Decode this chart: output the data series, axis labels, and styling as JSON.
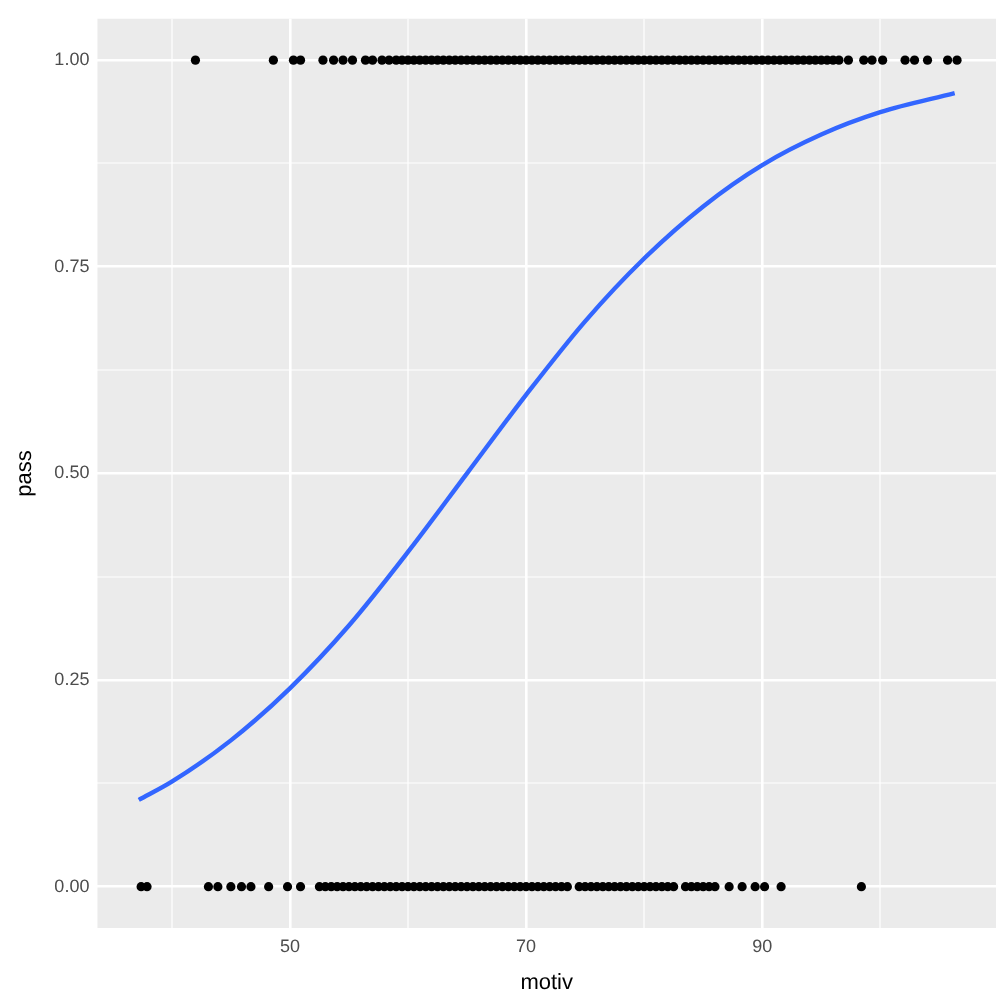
{
  "chart_data": {
    "type": "scatter",
    "xlabel": "motiv",
    "ylabel": "pass",
    "xlim": [
      33.7,
      109.8
    ],
    "ylim": [
      -0.05,
      1.05
    ],
    "xticks": [
      {
        "value": 40,
        "label": null
      },
      {
        "value": 50,
        "label": "50"
      },
      {
        "value": 60,
        "label": null
      },
      {
        "value": 70,
        "label": "70"
      },
      {
        "value": 80,
        "label": null
      },
      {
        "value": 90,
        "label": "90"
      },
      {
        "value": 100,
        "label": null
      }
    ],
    "yticks": [
      {
        "value": 0,
        "label": "0.00"
      },
      {
        "value": 0.125,
        "label": null
      },
      {
        "value": 0.25,
        "label": "0.25"
      },
      {
        "value": 0.375,
        "label": null
      },
      {
        "value": 0.5,
        "label": "0.50"
      },
      {
        "value": 0.625,
        "label": null
      },
      {
        "value": 0.75,
        "label": "0.75"
      },
      {
        "value": 0.875,
        "label": null
      },
      {
        "value": 1,
        "label": "1.00"
      }
    ],
    "grid": true,
    "legend": false,
    "marker": "circle",
    "series": [
      {
        "type": "scatter",
        "color": "#000000",
        "x": [
          42,
          48.6,
          50.3,
          50.9,
          52.8,
          53.7,
          54.5,
          55.3,
          56.4,
          57,
          57.8,
          58.4,
          59,
          59.5,
          60,
          60.5,
          61,
          61.5,
          62,
          62.5,
          63,
          63.5,
          64,
          64.5,
          65,
          65.5,
          66,
          66.5,
          67,
          67.5,
          68,
          68.5,
          69,
          69.5,
          70,
          70.5,
          71,
          71.5,
          72,
          72.5,
          73,
          73.5,
          74,
          74.5,
          75,
          75.5,
          76,
          76.5,
          77,
          77.5,
          78,
          78.5,
          79,
          79.5,
          80,
          80.5,
          81,
          81.5,
          82,
          82.5,
          83,
          83.5,
          84,
          84.5,
          85,
          85.5,
          86,
          86.5,
          87,
          87.5,
          88,
          88.5,
          89,
          89.5,
          90,
          90.5,
          91,
          91.5,
          92,
          92.5,
          93,
          93.5,
          94,
          94.5,
          95,
          95.5,
          96,
          96.5,
          97.3,
          98.6,
          99.3,
          100.2,
          102.1,
          102.9,
          104,
          105.7,
          106.5
        ],
        "values": [
          1,
          1,
          1,
          1,
          1,
          1,
          1,
          1,
          1,
          1,
          1,
          1,
          1,
          1,
          1,
          1,
          1,
          1,
          1,
          1,
          1,
          1,
          1,
          1,
          1,
          1,
          1,
          1,
          1,
          1,
          1,
          1,
          1,
          1,
          1,
          1,
          1,
          1,
          1,
          1,
          1,
          1,
          1,
          1,
          1,
          1,
          1,
          1,
          1,
          1,
          1,
          1,
          1,
          1,
          1,
          1,
          1,
          1,
          1,
          1,
          1,
          1,
          1,
          1,
          1,
          1,
          1,
          1,
          1,
          1,
          1,
          1,
          1,
          1,
          1,
          1,
          1,
          1,
          1,
          1,
          1,
          1,
          1,
          1,
          1,
          1,
          1,
          1,
          1,
          1,
          1,
          1,
          1,
          1,
          1,
          1,
          1
        ]
      },
      {
        "type": "scatter",
        "color": "#000000",
        "x": [
          37.4,
          37.9,
          43.1,
          43.9,
          45,
          45.9,
          46.7,
          48.2,
          49.8,
          50.9,
          52.5,
          53,
          53.5,
          54,
          54.5,
          55,
          55.5,
          56,
          56.5,
          57,
          57.5,
          58,
          58.5,
          59,
          59.5,
          60,
          60.5,
          61,
          61.5,
          62,
          62.5,
          63,
          63.5,
          64,
          64.5,
          65,
          65.5,
          66,
          66.5,
          67,
          67.5,
          68,
          68.5,
          69,
          69.5,
          70,
          70.5,
          71,
          71.5,
          72,
          72.5,
          73,
          73.5,
          74.5,
          75,
          75.5,
          76,
          76.5,
          77,
          77.5,
          78,
          78.5,
          79,
          79.5,
          80,
          80.5,
          81,
          81.5,
          82,
          82.5,
          83.5,
          84,
          84.5,
          85,
          85.5,
          86,
          87.2,
          88.3,
          89.4,
          90.2,
          91.6,
          98.4
        ],
        "values": [
          0,
          0,
          0,
          0,
          0,
          0,
          0,
          0,
          0,
          0,
          0,
          0,
          0,
          0,
          0,
          0,
          0,
          0,
          0,
          0,
          0,
          0,
          0,
          0,
          0,
          0,
          0,
          0,
          0,
          0,
          0,
          0,
          0,
          0,
          0,
          0,
          0,
          0,
          0,
          0,
          0,
          0,
          0,
          0,
          0,
          0,
          0,
          0,
          0,
          0,
          0,
          0,
          0,
          0,
          0,
          0,
          0,
          0,
          0,
          0,
          0,
          0,
          0,
          0,
          0,
          0,
          0,
          0,
          0,
          0,
          0,
          0,
          0,
          0,
          0,
          0,
          0,
          0,
          0,
          0,
          0,
          0
        ]
      },
      {
        "type": "line",
        "color": "#3366ff",
        "marker": "none",
        "x": [
          37.2,
          40,
          45,
          50,
          55,
          60,
          65,
          70,
          75,
          80,
          85,
          90,
          95,
          100,
          106.3
        ],
        "values": [
          0.105,
          0.127,
          0.177,
          0.24,
          0.316,
          0.405,
          0.5,
          0.595,
          0.684,
          0.76,
          0.823,
          0.873,
          0.91,
          0.937,
          0.96
        ]
      }
    ]
  }
}
